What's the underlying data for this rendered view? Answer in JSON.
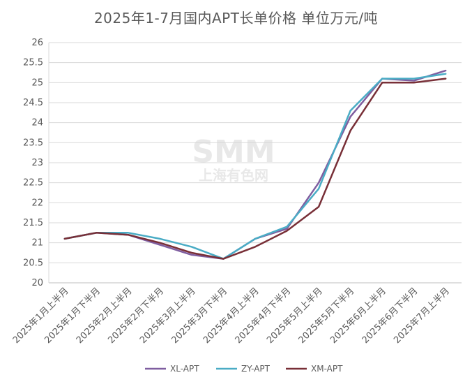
{
  "chart_data": {
    "type": "line",
    "title": "2025年1-7月国内APT长单价格 单位万元/吨",
    "xlabel": "",
    "ylabel": "",
    "ylim": [
      20,
      26
    ],
    "y_ticks": [
      20,
      20.5,
      21,
      21.5,
      22,
      22.5,
      23,
      23.5,
      24,
      24.5,
      25,
      25.5,
      26
    ],
    "grid": true,
    "legend": "bottom",
    "categories": [
      "2025年1月上半月",
      "2025年1月下半月",
      "2025年2月上半月",
      "2025年2月下半月",
      "2025年3月上半月",
      "2025年3月下半月",
      "2025年4月上半月",
      "2025年4月下半月",
      "2025年5月上半月",
      "2025年5月下半月",
      "2025年6月上半月",
      "2025年6月下半月",
      "2025年7月上半月"
    ],
    "series": [
      {
        "name": "XL-APT",
        "color": "#7F5EA0",
        "values": [
          21.1,
          21.25,
          21.2,
          20.95,
          20.7,
          20.6,
          21.1,
          21.35,
          22.5,
          24.15,
          25.1,
          25.05,
          25.3
        ]
      },
      {
        "name": "ZY-APT",
        "color": "#4AACC5",
        "values": [
          21.1,
          21.25,
          21.25,
          21.1,
          20.9,
          20.6,
          21.1,
          21.4,
          22.35,
          24.3,
          25.1,
          25.1,
          25.22
        ]
      },
      {
        "name": "XM-APT",
        "color": "#782F37",
        "values": [
          21.1,
          21.25,
          21.2,
          21.0,
          20.75,
          20.6,
          20.9,
          21.3,
          21.9,
          23.8,
          25.0,
          25.0,
          25.1
        ]
      }
    ]
  },
  "watermark": {
    "line1": "SMM",
    "line2": "上海有色网"
  }
}
